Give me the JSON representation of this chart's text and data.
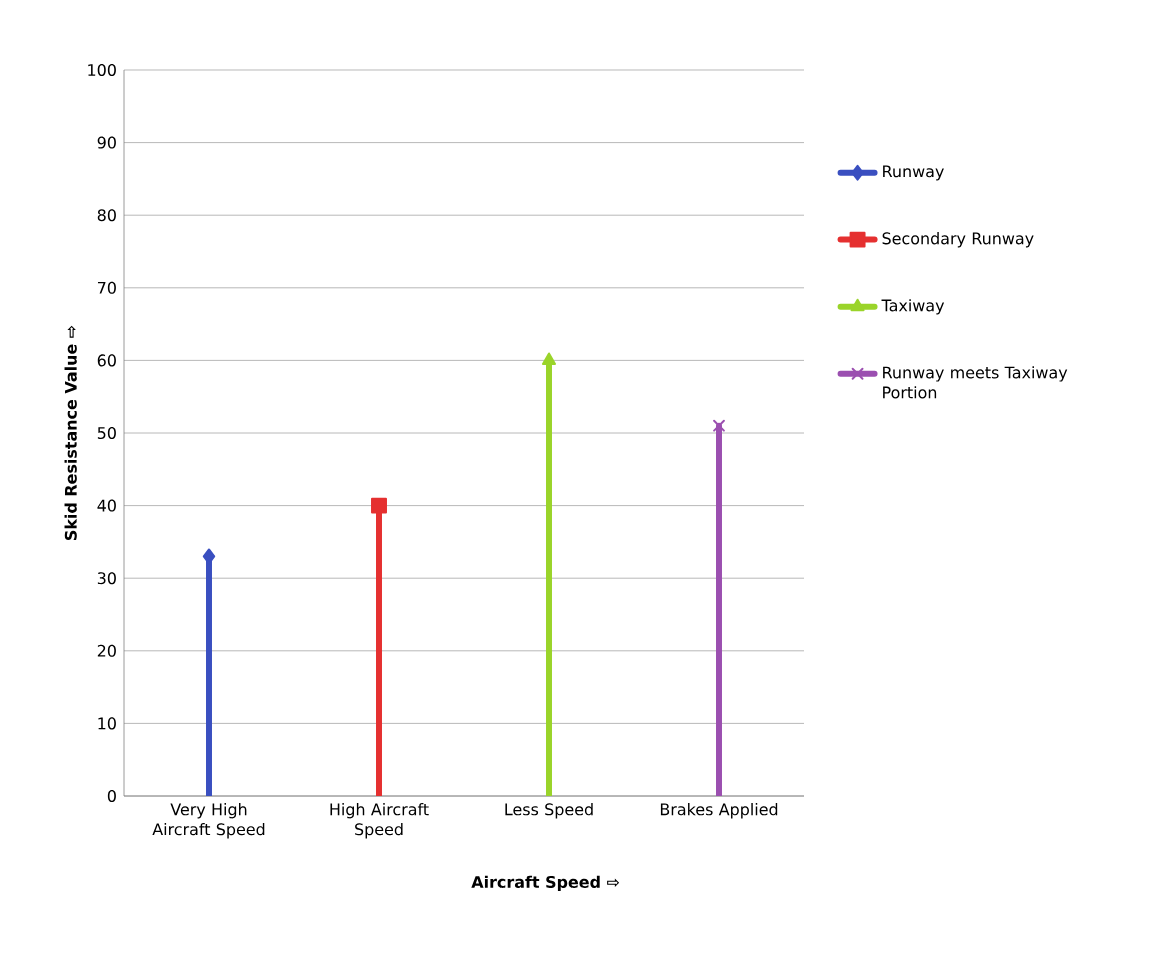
{
  "chart_data": {
    "type": "lollipop",
    "categories": [
      "Very High Aircraft Speed",
      "High Aircraft Speed",
      "Less Speed",
      "Brakes Applied"
    ],
    "xlabel": "Aircraft Speed ⇨",
    "ylabel": "Skid Resistance Value ⇨",
    "ylim": [
      0,
      100
    ],
    "yticks": [
      0,
      10,
      20,
      30,
      40,
      50,
      60,
      70,
      80,
      90,
      100
    ],
    "grid": "y",
    "legend": "right",
    "series": [
      {
        "name": "Runway",
        "color": "#3a4fc0",
        "marker": "diamond",
        "values": [
          33,
          null,
          null,
          null
        ]
      },
      {
        "name": "Secondary Runway",
        "color": "#e53030",
        "marker": "square",
        "values": [
          null,
          40,
          null,
          null
        ]
      },
      {
        "name": "Taxiway",
        "color": "#9ad42a",
        "marker": "triangle",
        "values": [
          null,
          null,
          60,
          null
        ]
      },
      {
        "name": "Runway meets Taxiway Portion",
        "color": "#9b4fb0",
        "marker": "cross",
        "values": [
          null,
          null,
          null,
          51
        ]
      }
    ]
  }
}
